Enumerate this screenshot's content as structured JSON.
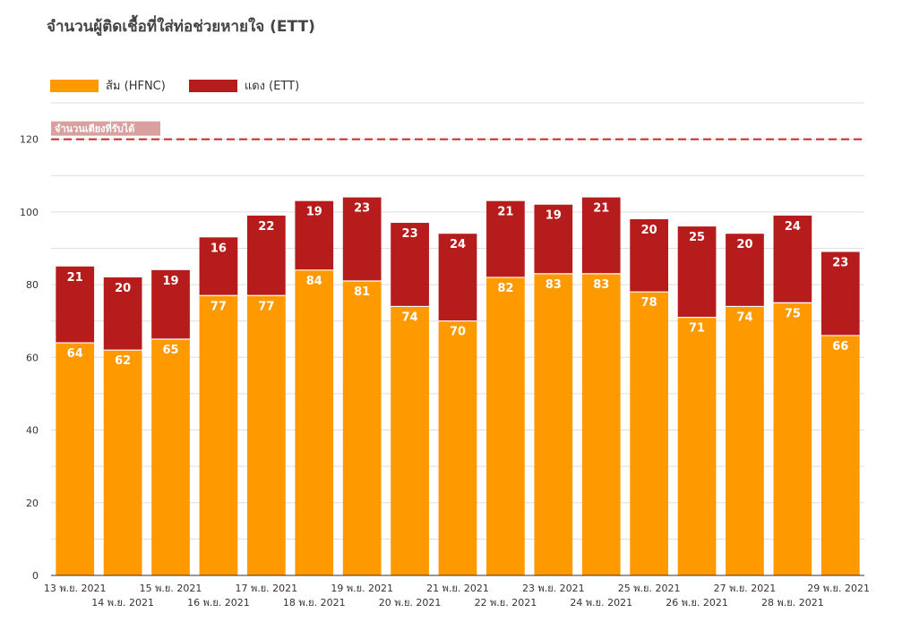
{
  "chart_data": {
    "type": "bar",
    "stacked": true,
    "title": "จำนวนผู้ติดเชื้อที่ใส่ท่อช่วยหายใจ (ETT)",
    "categories": [
      "13 พ.ย. 2021",
      "14 พ.ย. 2021",
      "15 พ.ย. 2021",
      "16 พ.ย. 2021",
      "17 พ.ย. 2021",
      "18 พ.ย. 2021",
      "19 พ.ย. 2021",
      "20 พ.ย. 2021",
      "21 พ.ย. 2021",
      "22 พ.ย. 2021",
      "23 พ.ย. 2021",
      "24 พ.ย. 2021",
      "25 พ.ย. 2021",
      "26 พ.ย. 2021",
      "27 พ.ย. 2021",
      "28 พ.ย. 2021",
      "29 พ.ย. 2021"
    ],
    "series": [
      {
        "name": "ส้ม (HFNC)",
        "color": "#ff9900",
        "values": [
          64,
          62,
          65,
          77,
          77,
          84,
          81,
          74,
          70,
          82,
          83,
          83,
          78,
          71,
          74,
          75,
          66
        ]
      },
      {
        "name": "แดง (ETT)",
        "color": "#b71c1c",
        "values": [
          21,
          20,
          19,
          16,
          22,
          19,
          23,
          23,
          24,
          21,
          19,
          21,
          20,
          25,
          20,
          24,
          23
        ]
      }
    ],
    "ylim": [
      0,
      130
    ],
    "yticks": [
      0,
      20,
      40,
      60,
      80,
      100,
      120
    ],
    "reference_line": {
      "value": 120,
      "label": "จำนวนเตียงที่รับได้",
      "color": "#c62828"
    },
    "legend_position": "top-left",
    "grid": true
  }
}
